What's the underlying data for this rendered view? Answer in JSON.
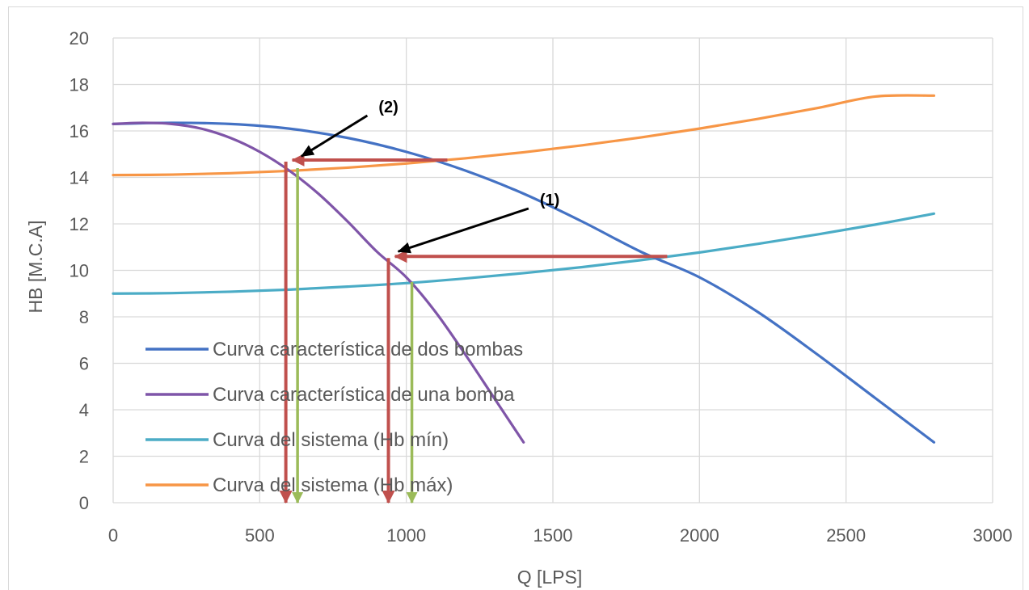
{
  "chart_data": {
    "type": "line",
    "xlabel": "Q [LPS]",
    "ylabel": "HB [M.C.A]",
    "xlim": [
      0,
      3000
    ],
    "ylim": [
      0,
      20
    ],
    "xticks": [
      0,
      500,
      1000,
      1500,
      2000,
      2500,
      3000
    ],
    "yticks": [
      0,
      2,
      4,
      6,
      8,
      10,
      12,
      14,
      16,
      18,
      20
    ],
    "grid": true,
    "legend_position": "lower-left",
    "series": [
      {
        "name": "Curva característica de dos bombas",
        "color": "#4472c4",
        "x": [
          0,
          200,
          400,
          600,
          800,
          1000,
          1200,
          1400,
          1600,
          1800,
          2000,
          2200,
          2400,
          2600,
          2800
        ],
        "y": [
          16.3,
          16.35,
          16.3,
          16.1,
          15.7,
          15.1,
          14.3,
          13.3,
          12.1,
          10.8,
          9.7,
          8.2,
          6.4,
          4.5,
          2.6
        ]
      },
      {
        "name": "Curva característica de una bomba",
        "color": "#7f55a8",
        "x": [
          0,
          100,
          200,
          300,
          400,
          500,
          600,
          700,
          800,
          900,
          1000,
          1100,
          1200,
          1300,
          1400
        ],
        "y": [
          16.3,
          16.35,
          16.3,
          16.1,
          15.7,
          15.1,
          14.3,
          13.3,
          12.1,
          10.8,
          9.7,
          8.2,
          6.4,
          4.5,
          2.6
        ]
      },
      {
        "name": "Curva del sistema (Hb mín)",
        "color": "#4bacc6",
        "x": [
          0,
          200,
          400,
          600,
          800,
          1000,
          1200,
          1400,
          1600,
          1800,
          2000,
          2200,
          2400,
          2600,
          2800
        ],
        "y": [
          9.0,
          9.02,
          9.08,
          9.17,
          9.3,
          9.45,
          9.65,
          9.88,
          10.14,
          10.44,
          10.77,
          11.14,
          11.54,
          11.97,
          12.44
        ]
      },
      {
        "name": "Curva del sistema (Hb máx)",
        "color": "#f79646",
        "x": [
          0,
          200,
          400,
          600,
          800,
          1000,
          1200,
          1400,
          1600,
          1800,
          2000,
          2200,
          2400,
          2600,
          2800
        ],
        "y": [
          14.1,
          14.12,
          14.18,
          14.28,
          14.42,
          14.6,
          14.82,
          15.08,
          15.38,
          15.72,
          16.1,
          16.52,
          16.98,
          17.48,
          17.52
        ]
      }
    ],
    "annotations": [
      {
        "label": "(1)",
        "point": [
          950,
          10.6
        ],
        "text_at": [
          1450,
          12.8
        ]
      },
      {
        "label": "(2)",
        "point": [
          620,
          14.7
        ],
        "text_at": [
          900,
          16.8
        ]
      }
    ],
    "red_lines": [
      {
        "from": [
          1890,
          10.6
        ],
        "to": [
          950,
          10.6
        ],
        "down_to": [
          950,
          0
        ]
      },
      {
        "from": [
          1140,
          14.75
        ],
        "to": [
          600,
          14.75
        ],
        "down_to": [
          600,
          0
        ]
      }
    ],
    "green_lines": [
      {
        "x": 1030,
        "from_y": 9.5,
        "to_y": 0
      },
      {
        "x": 640,
        "from_y": 14.4,
        "to_y": 0
      }
    ]
  }
}
